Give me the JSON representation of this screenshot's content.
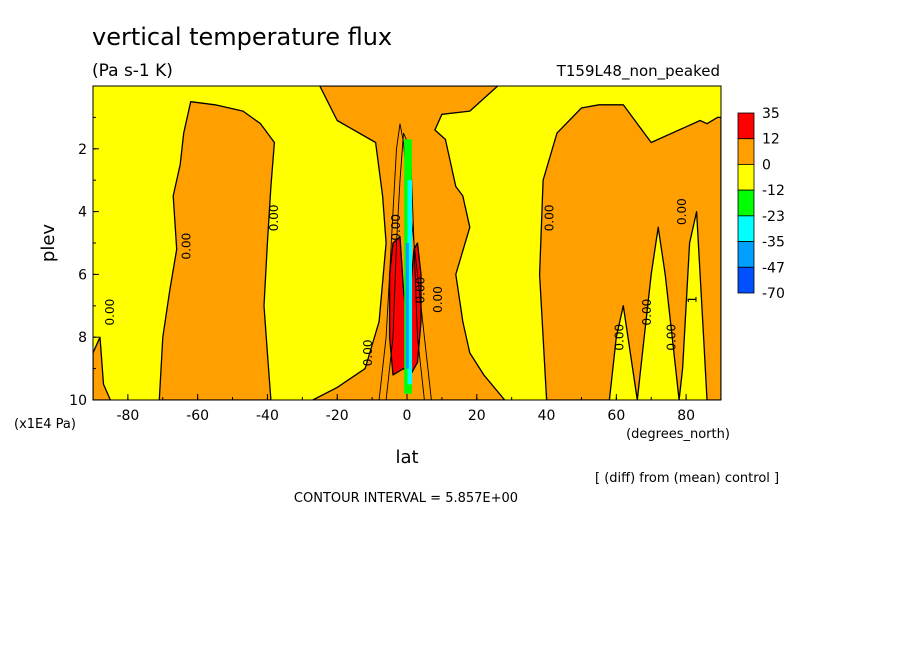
{
  "chart_data": {
    "type": "heatmap",
    "title": "vertical temperature flux",
    "units": "(Pa s-1 K)",
    "run_name": "T159L48_non_peaked",
    "xlabel": "lat",
    "x_units": "(degrees_north)",
    "ylabel": "plev",
    "y_units": "(x1E4 Pa)",
    "xlim": [
      -90,
      90
    ],
    "ylim": [
      10,
      0
    ],
    "x_ticks": [
      "-80",
      "-60",
      "-40",
      "-20",
      "0",
      "20",
      "40",
      "60",
      "80"
    ],
    "y_ticks": [
      "2",
      "4",
      "6",
      "8",
      "10"
    ],
    "footer_note": "[ (diff) from (mean) control ]",
    "contour_interval": "CONTOUR INTERVAL = 5.857E+00",
    "colorbar": {
      "levels": [
        "35",
        "12",
        "0",
        "-12",
        "-23",
        "-35",
        "-47",
        "-70"
      ],
      "colors": [
        "#ff0000",
        "#ff9f00",
        "#ffff00",
        "#00ff00",
        "#00ffff",
        "#00a0ff",
        "#0050ff"
      ]
    },
    "contour_labels": [
      "0.00",
      "0.00",
      "0.00",
      "0.00",
      "0.00",
      "0.00",
      "0.00",
      "0.00",
      "0.00",
      "0.00",
      "0.00",
      "0.00",
      "1"
    ]
  }
}
